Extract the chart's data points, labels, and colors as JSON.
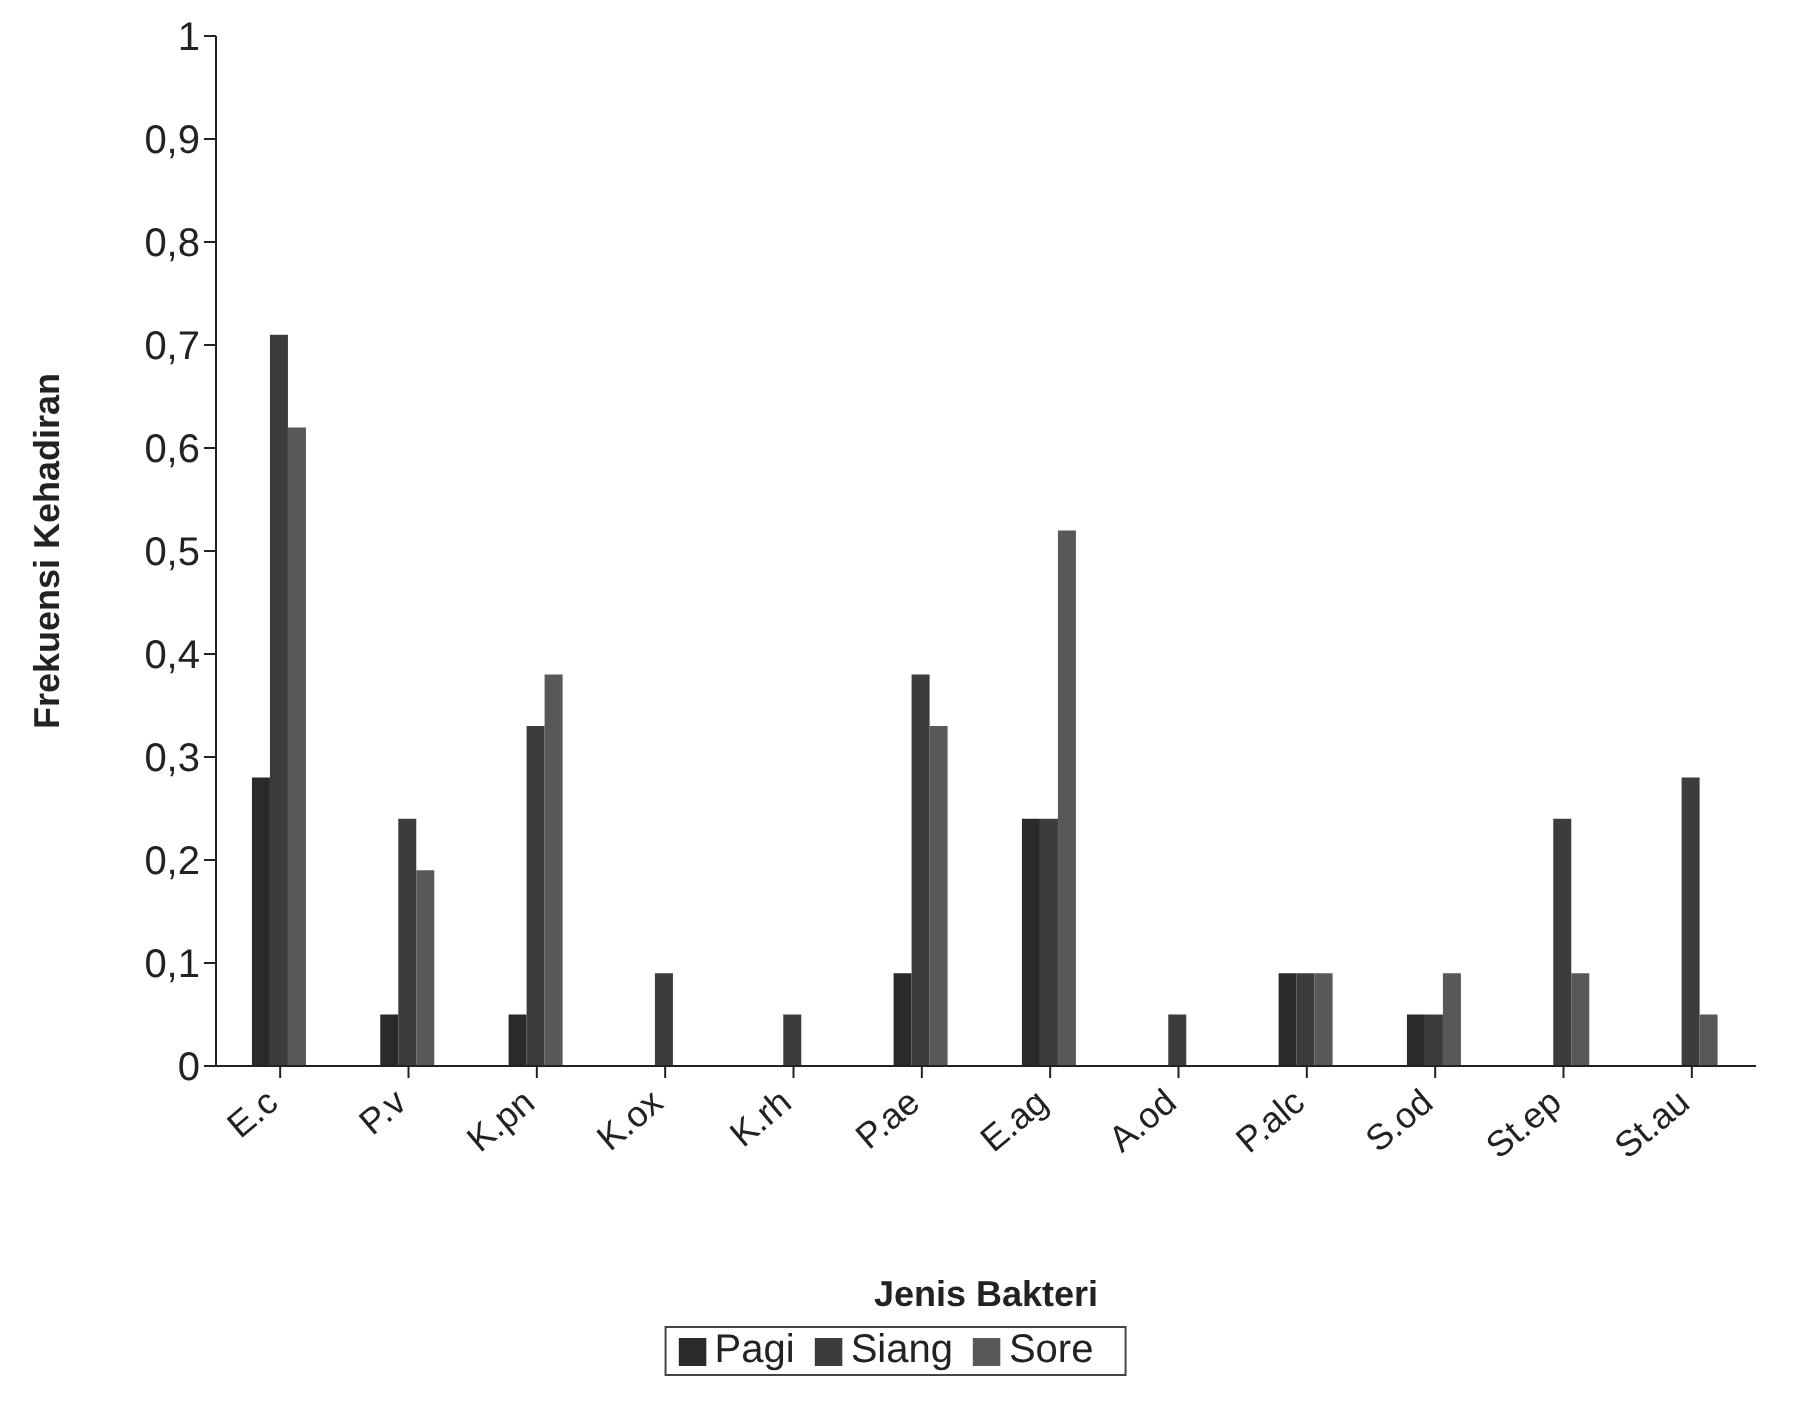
{
  "chart_data": {
    "type": "bar",
    "xlabel": "Jenis Bakteri",
    "ylabel": "Frekuensi Kehadiran",
    "categories": [
      "E.c",
      "P.v",
      "K.pn",
      "K.ox",
      "K.rh",
      "P.ae",
      "E.ag",
      "A.od",
      "P.alc",
      "S.od",
      "St.ep",
      "St.au"
    ],
    "series": [
      {
        "name": "Pagi",
        "color": "#2a2a2a",
        "values": [
          0.28,
          0.05,
          0.05,
          0,
          0,
          0.09,
          0.24,
          0,
          0.09,
          0.05,
          0,
          0
        ]
      },
      {
        "name": "Siang",
        "color": "#3c3c3c",
        "values": [
          0.71,
          0.24,
          0.33,
          0.09,
          0.05,
          0.38,
          0.24,
          0.05,
          0.09,
          0.05,
          0.24,
          0.28
        ]
      },
      {
        "name": "Sore",
        "color": "#585858",
        "values": [
          0.62,
          0.19,
          0.38,
          0,
          0,
          0.33,
          0.52,
          0,
          0.09,
          0.09,
          0.09,
          0.05
        ]
      }
    ],
    "ylim": [
      0,
      1
    ],
    "yticks": [
      0,
      {
        "value": 0.1,
        "label": "0,1"
      },
      {
        "value": 0.2,
        "label": "0,2"
      },
      {
        "value": 0.3,
        "label": "0,3"
      },
      {
        "value": 0.4,
        "label": "0,4"
      },
      {
        "value": 0.5,
        "label": "0,5"
      },
      {
        "value": 0.6,
        "label": "0,6"
      },
      {
        "value": 0.7,
        "label": "0,7"
      },
      {
        "value": 0.8,
        "label": "0,8"
      },
      {
        "value": 0.9,
        "label": "0,9"
      },
      1
    ],
    "grid": false,
    "legend": "bottom"
  }
}
